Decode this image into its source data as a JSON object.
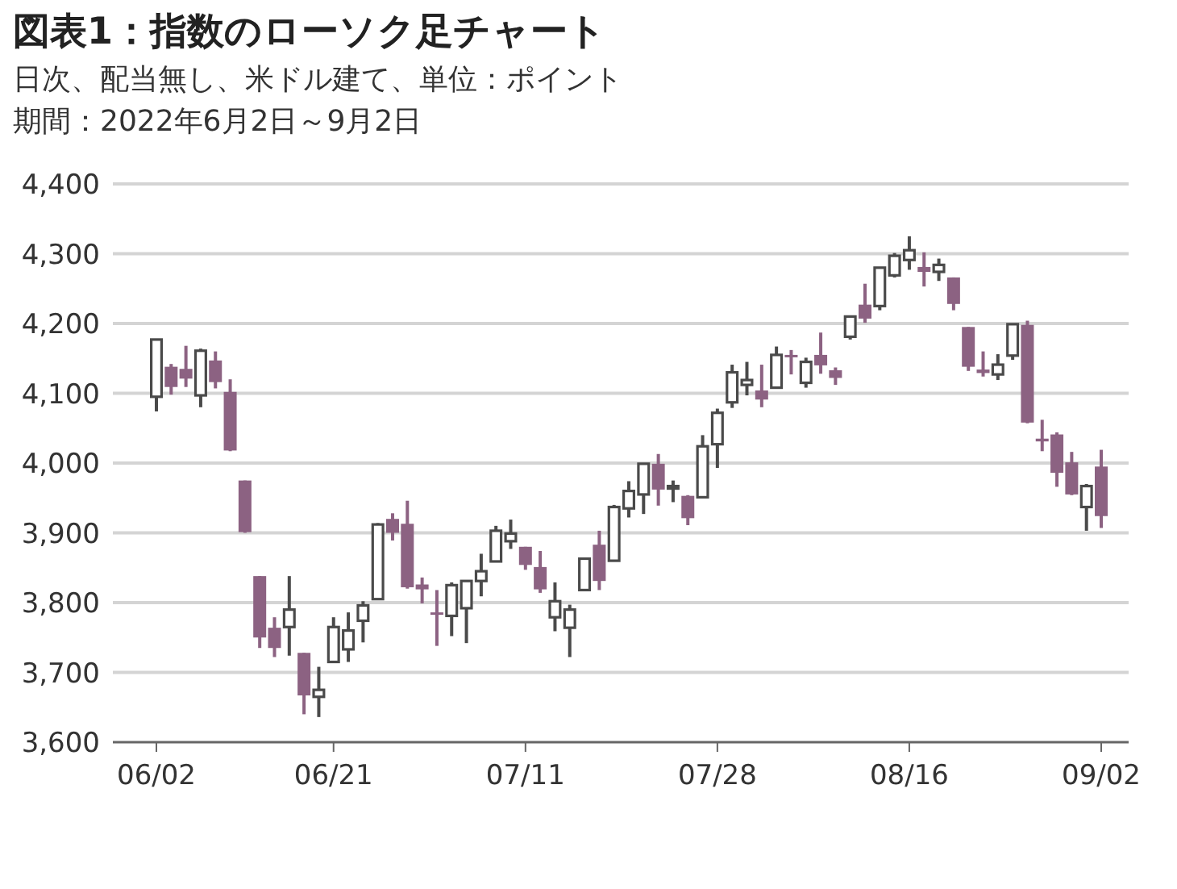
{
  "chart_data": {
    "type": "candlestick",
    "title": "図表1：指数のローソク足チャート",
    "subtitle": "日次、配当無し、米ドル建て、単位：ポイント",
    "annotations": [
      "期間：2022年6月2日～9月2日"
    ],
    "categories": [
      "06/02",
      null,
      null,
      null,
      null,
      null,
      null,
      null,
      null,
      null,
      null,
      null,
      "06/21",
      null,
      null,
      null,
      null,
      null,
      null,
      null,
      null,
      null,
      null,
      null,
      null,
      "07/11",
      null,
      null,
      null,
      null,
      null,
      null,
      null,
      null,
      null,
      null,
      null,
      null,
      "07/28",
      null,
      null,
      null,
      null,
      null,
      null,
      null,
      null,
      null,
      null,
      null,
      null,
      "08/16",
      null,
      null,
      null,
      null,
      null,
      null,
      null,
      null,
      null,
      null,
      null,
      null,
      "09/02"
    ],
    "ohlc": [
      [
        4095,
        4177,
        4074,
        4177
      ],
      [
        4138,
        4142,
        4098,
        4109
      ],
      [
        4135,
        4168,
        4109,
        4121
      ],
      [
        4097,
        4164,
        4080,
        4161
      ],
      [
        4147,
        4160,
        4107,
        4116
      ],
      [
        4102,
        4120,
        4017,
        4018
      ],
      [
        3975,
        3975,
        3900,
        3901
      ],
      [
        3838,
        3838,
        3735,
        3750
      ],
      [
        3764,
        3779,
        3722,
        3735
      ],
      [
        3765,
        3838,
        3724,
        3790
      ],
      [
        3728,
        3728,
        3640,
        3667
      ],
      [
        3665,
        3708,
        3636,
        3675
      ],
      [
        3715,
        3779,
        3715,
        3765
      ],
      [
        3733,
        3786,
        3715,
        3760
      ],
      [
        3774,
        3802,
        3743,
        3796
      ],
      [
        3805,
        3914,
        3805,
        3912
      ],
      [
        3920,
        3928,
        3889,
        3900
      ],
      [
        3913,
        3946,
        3820,
        3822
      ],
      [
        3826,
        3836,
        3799,
        3819
      ],
      [
        3786,
        3818,
        3738,
        3785
      ],
      [
        3781,
        3829,
        3752,
        3825
      ],
      [
        3792,
        3832,
        3742,
        3831
      ],
      [
        3831,
        3870,
        3809,
        3845
      ],
      [
        3859,
        3910,
        3859,
        3903
      ],
      [
        3888,
        3919,
        3877,
        3899
      ],
      [
        3880,
        3880,
        3847,
        3854
      ],
      [
        3851,
        3874,
        3814,
        3819
      ],
      [
        3779,
        3829,
        3759,
        3802
      ],
      [
        3764,
        3797,
        3722,
        3790
      ],
      [
        3818,
        3863,
        3817,
        3863
      ],
      [
        3883,
        3903,
        3818,
        3831
      ],
      [
        3860,
        3940,
        3860,
        3937
      ],
      [
        3935,
        3974,
        3922,
        3960
      ],
      [
        3955,
        3999,
        3927,
        3999
      ],
      [
        3999,
        4013,
        3939,
        3962
      ],
      [
        3965,
        3975,
        3944,
        3967
      ],
      [
        3953,
        3954,
        3911,
        3921
      ],
      [
        3951,
        4040,
        3951,
        4024
      ],
      [
        4027,
        4078,
        3993,
        4072
      ],
      [
        4087,
        4141,
        4079,
        4130
      ],
      [
        4112,
        4145,
        4097,
        4119
      ],
      [
        4104,
        4141,
        4080,
        4091
      ],
      [
        4108,
        4167,
        4108,
        4155
      ],
      [
        4155,
        4162,
        4127,
        4152
      ],
      [
        4115,
        4151,
        4108,
        4145
      ],
      [
        4155,
        4187,
        4128,
        4140
      ],
      [
        4133,
        4137,
        4112,
        4122
      ],
      [
        4181,
        4211,
        4177,
        4210
      ],
      [
        4227,
        4257,
        4201,
        4207
      ],
      [
        4225,
        4280,
        4219,
        4280
      ],
      [
        4269,
        4301,
        4266,
        4297
      ],
      [
        4291,
        4325,
        4277,
        4305
      ],
      [
        4281,
        4302,
        4253,
        4274
      ],
      [
        4274,
        4293,
        4261,
        4284
      ],
      [
        4266,
        4266,
        4219,
        4228
      ],
      [
        4195,
        4195,
        4132,
        4138
      ],
      [
        4134,
        4160,
        4124,
        4129
      ],
      [
        4127,
        4156,
        4119,
        4141
      ],
      [
        4154,
        4200,
        4148,
        4199
      ],
      [
        4198,
        4204,
        4057,
        4058
      ],
      [
        4035,
        4062,
        4017,
        4031
      ],
      [
        4041,
        4044,
        3966,
        3986
      ],
      [
        4001,
        4016,
        3954,
        3955
      ],
      [
        3937,
        3970,
        3903,
        3967
      ],
      [
        3995,
        4019,
        3907,
        3924
      ]
    ],
    "colors": [
      "#4a4a4a",
      "#8c6282",
      "#8c6282",
      "#4a4a4a",
      "#8c6282",
      "#8c6282",
      "#8c6282",
      "#8c6282",
      "#8c6282",
      "#4a4a4a",
      "#8c6282",
      "#4a4a4a",
      "#4a4a4a",
      "#4a4a4a",
      "#4a4a4a",
      "#4a4a4a",
      "#8c6282",
      "#8c6282",
      "#8c6282",
      "#8c6282",
      "#4a4a4a",
      "#4a4a4a",
      "#4a4a4a",
      "#4a4a4a",
      "#4a4a4a",
      "#8c6282",
      "#8c6282",
      "#4a4a4a",
      "#4a4a4a",
      "#4a4a4a",
      "#8c6282",
      "#4a4a4a",
      "#4a4a4a",
      "#4a4a4a",
      "#8c6282",
      "#4a4a4a",
      "#8c6282",
      "#4a4a4a",
      "#4a4a4a",
      "#4a4a4a",
      "#4a4a4a",
      "#8c6282",
      "#4a4a4a",
      "#8c6282",
      "#4a4a4a",
      "#8c6282",
      "#8c6282",
      "#4a4a4a",
      "#8c6282",
      "#4a4a4a",
      "#4a4a4a",
      "#4a4a4a",
      "#8c6282",
      "#4a4a4a",
      "#8c6282",
      "#8c6282",
      "#8c6282",
      "#4a4a4a",
      "#4a4a4a",
      "#8c6282",
      "#8c6282",
      "#8c6282",
      "#8c6282",
      "#4a4a4a",
      "#8c6282"
    ],
    "ylim": [
      3600,
      4400
    ],
    "yticks": [
      {
        "value": 3600,
        "label": "3,600"
      },
      {
        "value": 3700,
        "label": "3,700"
      },
      {
        "value": 3800,
        "label": "3,800"
      },
      {
        "value": 3900,
        "label": "3,900"
      },
      {
        "value": 4000,
        "label": "4,000"
      },
      {
        "value": 4100,
        "label": "4,100"
      },
      {
        "value": 4200,
        "label": "4,200"
      },
      {
        "value": 4300,
        "label": "4,300"
      },
      {
        "value": 4400,
        "label": "4,400"
      }
    ],
    "grid": "y"
  }
}
